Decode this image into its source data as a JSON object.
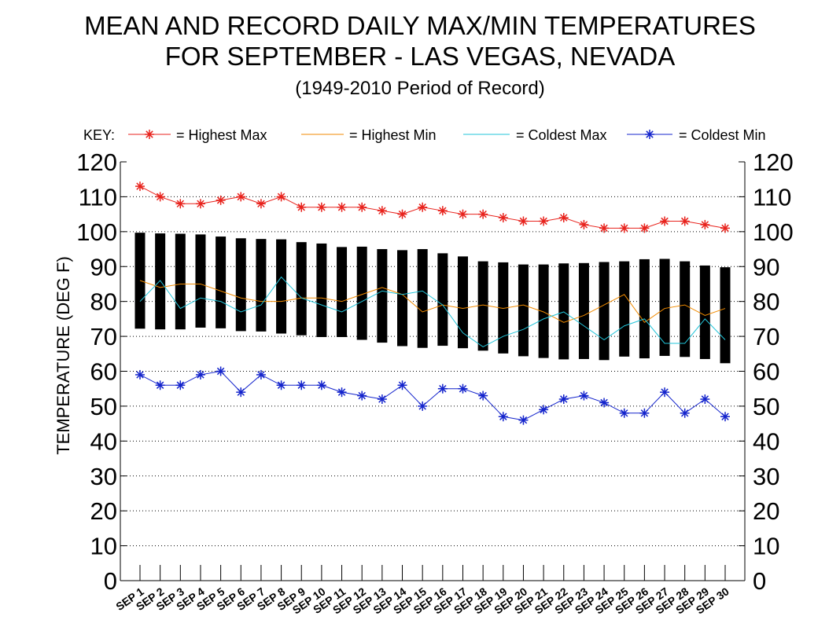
{
  "chart_data": {
    "type": "bar",
    "title": "MEAN AND RECORD DAILY MAX/MIN TEMPERATURES",
    "title_line2": "FOR SEPTEMBER - LAS VEGAS, NEVADA",
    "subtitle": "(1949-2010 Period of Record)",
    "ylabel": "TEMPERATURE (DEG F)",
    "xlabel": "",
    "ylim": [
      0,
      120
    ],
    "yticks": [
      0,
      10,
      20,
      30,
      40,
      50,
      60,
      70,
      80,
      90,
      100,
      110,
      120
    ],
    "grid": "dotted horizontal",
    "legend_position": "top",
    "key_label": "KEY:",
    "categories": [
      "SEP 1",
      "SEP 2",
      "SEP 3",
      "SEP 4",
      "SEP 5",
      "SEP 6",
      "SEP 7",
      "SEP 8",
      "SEP 9",
      "SEP 10",
      "SEP 11",
      "SEP 12",
      "SEP 13",
      "SEP 14",
      "SEP 15",
      "SEP 16",
      "SEP 17",
      "SEP 18",
      "SEP 19",
      "SEP 20",
      "SEP 21",
      "SEP 22",
      "SEP 23",
      "SEP 24",
      "SEP 25",
      "SEP 26",
      "SEP 27",
      "SEP 28",
      "SEP 29",
      "SEP 30"
    ],
    "mean_bars": {
      "color": "#000000",
      "mean_max": [
        99.7,
        99.5,
        99.4,
        99.2,
        98.6,
        98.1,
        97.9,
        97.8,
        97.0,
        96.6,
        95.6,
        95.7,
        95.0,
        94.7,
        95.0,
        93.8,
        92.9,
        91.5,
        91.2,
        90.6,
        90.6,
        90.9,
        91.0,
        91.3,
        91.5,
        92.1,
        92.2,
        91.5,
        90.3,
        89.8
      ],
      "mean_min": [
        72.2,
        72.0,
        72.0,
        72.5,
        72.3,
        71.5,
        71.4,
        70.8,
        70.3,
        69.8,
        69.8,
        69.0,
        68.2,
        67.2,
        66.7,
        67.3,
        66.6,
        65.9,
        65.1,
        64.3,
        63.8,
        63.4,
        63.5,
        63.2,
        64.2,
        63.7,
        64.4,
        64.1,
        63.5,
        62.3
      ]
    },
    "series": [
      {
        "name": "Highest Max",
        "color": "#e8221c",
        "marker": "asterisk",
        "values": [
          113,
          110,
          108,
          108,
          109,
          110,
          108,
          110,
          107,
          107,
          107,
          107,
          106,
          105,
          107,
          106,
          105,
          105,
          104,
          103,
          103,
          104,
          102,
          101,
          101,
          101,
          103,
          103,
          102,
          101
        ]
      },
      {
        "name": "Highest Min",
        "color": "#f08a00",
        "marker": "none",
        "values": [
          86,
          84,
          85,
          85,
          83,
          81,
          80,
          80,
          81,
          81,
          80,
          82,
          84,
          82,
          77,
          79,
          78,
          79,
          78,
          79,
          77,
          74,
          76,
          79,
          82,
          74,
          78,
          79,
          76,
          78
        ]
      },
      {
        "name": "Coldest Max",
        "color": "#22c4d9",
        "marker": "none",
        "values": [
          80,
          86,
          78,
          81,
          80,
          77,
          79,
          87,
          81,
          79,
          77,
          80,
          83,
          82,
          83,
          79,
          71,
          67,
          70,
          72,
          75,
          77,
          73,
          69,
          73,
          75,
          68,
          68,
          75,
          69
        ]
      },
      {
        "name": "Coldest Min",
        "color": "#1424cc",
        "marker": "asterisk",
        "values": [
          59,
          56,
          56,
          59,
          60,
          54,
          59,
          56,
          56,
          56,
          54,
          53,
          52,
          56,
          50,
          55,
          55,
          53,
          47,
          46,
          49,
          52,
          53,
          51,
          48,
          48,
          54,
          48,
          52,
          47
        ]
      }
    ]
  }
}
